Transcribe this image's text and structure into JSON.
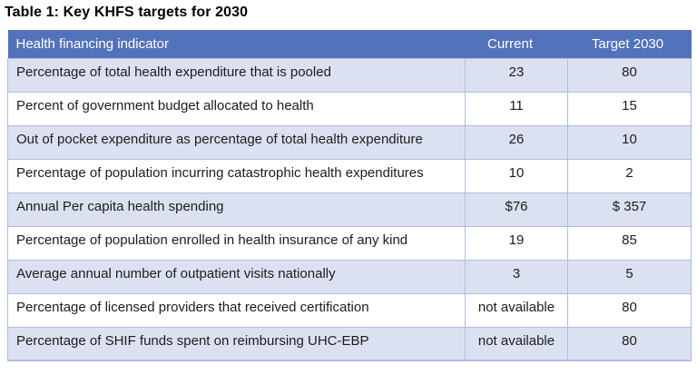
{
  "title": "Table 1: Key KHFS targets for 2030",
  "colors": {
    "header_bg": "#5272bc",
    "row_alt_bg": "#dce1f1",
    "row_bg": "#ffffff",
    "border": "#afbce1",
    "header_text": "#ffffff",
    "body_text": "#1c1c1c",
    "title_text": "#000000"
  },
  "table": {
    "columns": [
      {
        "label": "Health financing indicator"
      },
      {
        "label": "Current"
      },
      {
        "label": "Target 2030"
      }
    ],
    "rows": [
      {
        "indicator": "Percentage of total health expenditure that is pooled",
        "current": "23",
        "target": "80"
      },
      {
        "indicator": "Percent of government budget allocated to health",
        "current": "11",
        "target": "15"
      },
      {
        "indicator": "Out of pocket expenditure as percentage of total health expenditure",
        "current": "26",
        "target": "10"
      },
      {
        "indicator": "Percentage of population incurring catastrophic health expenditures",
        "current": "10",
        "target": "2"
      },
      {
        "indicator": "Annual Per capita health spending",
        "current": "$76",
        "target": "$ 357"
      },
      {
        "indicator": "Percentage of population enrolled in health insurance of any kind",
        "current": "19",
        "target": "85"
      },
      {
        "indicator": "Average annual number of outpatient visits nationally",
        "current": "3",
        "target": "5"
      },
      {
        "indicator": "Percentage of licensed providers that received certification",
        "current": "not available",
        "target": "80"
      },
      {
        "indicator": "Percentage of SHIF funds spent on reimbursing UHC-EBP",
        "current": "not available",
        "target": "80"
      }
    ]
  }
}
